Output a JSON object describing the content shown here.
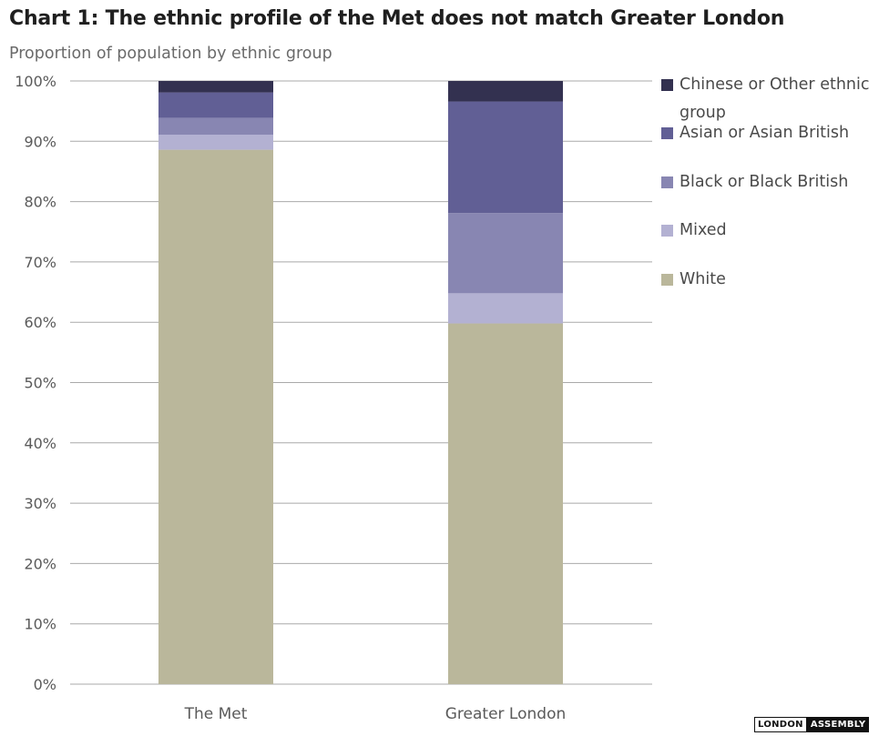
{
  "title": "Chart 1: The ethnic profile of the Met does not match Greater London",
  "subtitle": "Proportion of population by ethnic group",
  "logo": {
    "part1": "LONDON",
    "part2": "ASSEMBLY"
  },
  "chart_data": {
    "type": "bar",
    "stacked": true,
    "title": "Chart 1: The ethnic profile of the Met does not match Greater London",
    "subtitle": "Proportion of population by ethnic group",
    "xlabel": "",
    "ylabel": "",
    "categories": [
      "The Met",
      "Greater London"
    ],
    "ylim": [
      0,
      100
    ],
    "yticks": [
      0,
      10,
      20,
      30,
      40,
      50,
      60,
      70,
      80,
      90,
      100
    ],
    "ytick_labels": [
      "0%",
      "10%",
      "20%",
      "30%",
      "40%",
      "50%",
      "60%",
      "70%",
      "80%",
      "90%",
      "100%"
    ],
    "grid": true,
    "legend_position": "right",
    "series": [
      {
        "name": "White",
        "color": "#bab79b",
        "values": [
          88.6,
          59.8
        ]
      },
      {
        "name": "Mixed",
        "color": "#b3b1d2",
        "values": [
          2.5,
          5.0
        ]
      },
      {
        "name": "Black or Black British",
        "color": "#8886b2",
        "values": [
          2.8,
          13.3
        ]
      },
      {
        "name": "Asian or Asian British",
        "color": "#615f95",
        "values": [
          4.2,
          18.5
        ]
      },
      {
        "name": "Chinese or Other ethnic group",
        "color": "#333150",
        "values": [
          1.9,
          3.4
        ]
      }
    ]
  },
  "legend": [
    {
      "label": "Chinese or Other ethnic group",
      "color": "#333150"
    },
    {
      "label": "Asian or Asian British",
      "color": "#615f95"
    },
    {
      "label": "Black or Black British",
      "color": "#8886b2"
    },
    {
      "label": "Mixed",
      "color": "#b3b1d2"
    },
    {
      "label": "White",
      "color": "#bab79b"
    }
  ]
}
